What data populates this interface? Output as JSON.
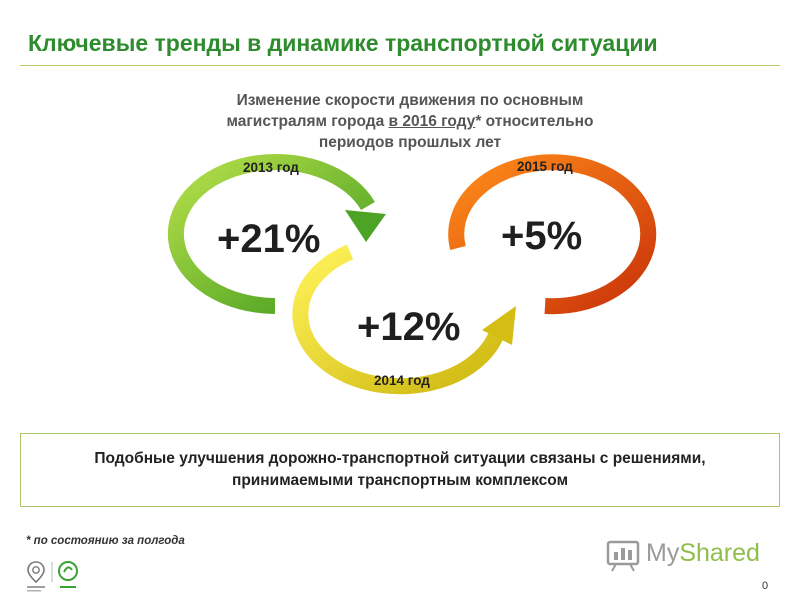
{
  "header": {
    "title": "Ключевые тренды в динамике транспортной ситуации"
  },
  "subtitle": {
    "line1": "Изменение скорости движения по основным",
    "line2_prefix": "магистралям города ",
    "line2_underlined": "в 2016 году",
    "line2_suffix": "* относительно",
    "line3": "периодов прошлых лет"
  },
  "cycles": [
    {
      "year": "2013 год",
      "value": "+21%",
      "color": "#5cb82a"
    },
    {
      "year": "2014 год",
      "value": "+12%",
      "color": "#e0d21a"
    },
    {
      "year": "2015 год",
      "value": "+5%",
      "color": "#ea4f0e"
    }
  ],
  "note": "Подобные улучшения дорожно-транспортной ситуации связаны с решениями, принимаемыми транспортным комплексом",
  "footnote": "* по состоянию за полгода",
  "watermark": {
    "prefix": "My",
    "highlight": "Shared"
  },
  "page_number": "0"
}
